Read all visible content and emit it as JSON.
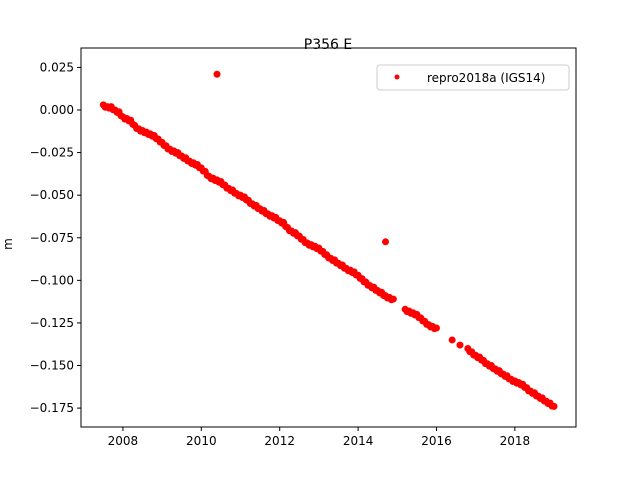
{
  "chart_data": {
    "type": "scatter",
    "title": "P356 E",
    "xlabel": "",
    "ylabel": "m",
    "xlim": [
      2006.93,
      2019.56
    ],
    "ylim": [
      -0.1861,
      0.0364
    ],
    "xticks": [
      2008,
      2010,
      2012,
      2014,
      2016,
      2018
    ],
    "xtick_labels": [
      "2008",
      "2010",
      "2012",
      "2014",
      "2016",
      "2018"
    ],
    "yticks": [
      0.025,
      0.0,
      -0.025,
      -0.05,
      -0.075,
      -0.1,
      -0.125,
      -0.15,
      -0.175
    ],
    "ytick_labels": [
      "0.025",
      "0.000",
      "−0.025",
      "−0.050",
      "−0.075",
      "−0.100",
      "−0.125",
      "−0.150",
      "−0.175"
    ],
    "grid": false,
    "legend_placement": "upper-right",
    "series": [
      {
        "name": "repro2018a (IGS14)",
        "color": "#ff0000",
        "marker": "circle",
        "x": [
          2007.5,
          2007.6,
          2007.7,
          2007.8,
          2007.9,
          2008.0,
          2008.1,
          2008.2,
          2008.3,
          2008.4,
          2008.5,
          2008.6,
          2008.7,
          2008.8,
          2008.9,
          2009.0,
          2009.1,
          2009.2,
          2009.3,
          2009.4,
          2009.5,
          2009.6,
          2009.7,
          2009.8,
          2009.9,
          2010.0,
          2010.1,
          2010.2,
          2010.3,
          2010.4,
          2010.5,
          2010.6,
          2010.7,
          2010.8,
          2010.9,
          2011.0,
          2011.1,
          2011.2,
          2011.3,
          2011.4,
          2011.5,
          2011.6,
          2011.7,
          2011.8,
          2011.9,
          2012.0,
          2012.1,
          2012.2,
          2012.3,
          2012.4,
          2012.5,
          2012.6,
          2012.7,
          2012.8,
          2012.9,
          2013.0,
          2013.1,
          2013.2,
          2013.3,
          2013.4,
          2013.5,
          2013.6,
          2013.7,
          2013.8,
          2013.9,
          2014.0,
          2014.1,
          2014.2,
          2014.3,
          2014.4,
          2014.5,
          2014.6,
          2014.7,
          2014.8,
          2014.9,
          2015.2,
          2015.3,
          2015.4,
          2015.5,
          2015.6,
          2015.7,
          2015.8,
          2015.9,
          2016.0,
          2016.4,
          2016.6,
          2016.8,
          2016.9,
          2017.0,
          2017.1,
          2017.2,
          2017.3,
          2017.4,
          2017.5,
          2017.6,
          2017.7,
          2017.8,
          2017.9,
          2018.0,
          2018.1,
          2018.2,
          2018.3,
          2018.4,
          2018.5,
          2018.6,
          2018.7,
          2018.8,
          2018.9,
          2019.0,
          2010.4
        ],
        "y": [
          0.003,
          0.002,
          0.002,
          0.0,
          -0.001,
          -0.004,
          -0.005,
          -0.006,
          -0.009,
          -0.011,
          -0.012,
          -0.013,
          -0.014,
          -0.015,
          -0.017,
          -0.019,
          -0.021,
          -0.023,
          -0.024,
          -0.025,
          -0.027,
          -0.028,
          -0.03,
          -0.031,
          -0.032,
          -0.034,
          -0.036,
          -0.039,
          -0.04,
          -0.041,
          -0.042,
          -0.044,
          -0.046,
          -0.047,
          -0.049,
          -0.05,
          -0.051,
          -0.053,
          -0.055,
          -0.056,
          -0.058,
          -0.059,
          -0.061,
          -0.062,
          -0.063,
          -0.065,
          -0.066,
          -0.069,
          -0.071,
          -0.072,
          -0.074,
          -0.076,
          -0.078,
          -0.079,
          -0.08,
          -0.081,
          -0.083,
          -0.085,
          -0.087,
          -0.088,
          -0.09,
          -0.091,
          -0.093,
          -0.094,
          -0.095,
          -0.097,
          -0.099,
          -0.101,
          -0.103,
          -0.104,
          -0.106,
          -0.107,
          -0.109,
          -0.11,
          -0.111,
          -0.117,
          -0.118,
          -0.119,
          -0.12,
          -0.122,
          -0.124,
          -0.126,
          -0.127,
          -0.128,
          -0.135,
          -0.138,
          -0.14,
          -0.142,
          -0.144,
          -0.145,
          -0.147,
          -0.149,
          -0.15,
          -0.152,
          -0.153,
          -0.155,
          -0.156,
          -0.158,
          -0.159,
          -0.16,
          -0.161,
          -0.163,
          -0.165,
          -0.166,
          -0.168,
          -0.169,
          -0.171,
          -0.172,
          -0.174,
          0.021
        ]
      }
    ]
  }
}
